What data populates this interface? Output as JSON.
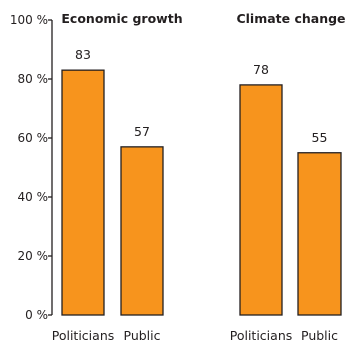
{
  "chart_data": {
    "type": "bar",
    "title": "",
    "xlabel": "",
    "ylabel": "",
    "ylim": [
      0,
      100
    ],
    "yticks": [
      0,
      20,
      40,
      60,
      80,
      100
    ],
    "ytick_labels": [
      "0 %",
      "20 %",
      "40 %",
      "60 %",
      "80 %",
      "100 %"
    ],
    "grid": false,
    "bar_color": "#f7941d",
    "groups": [
      {
        "title": "Economic growth",
        "bars": [
          {
            "category": "Politicians",
            "value": 83,
            "label": "83"
          },
          {
            "category": "Public",
            "value": 57,
            "label": "57"
          }
        ]
      },
      {
        "title": "Climate change",
        "bars": [
          {
            "category": "Politicians",
            "value": 78,
            "label": "78"
          },
          {
            "category": "Public",
            "value": 55,
            "label": "55"
          }
        ]
      }
    ]
  }
}
